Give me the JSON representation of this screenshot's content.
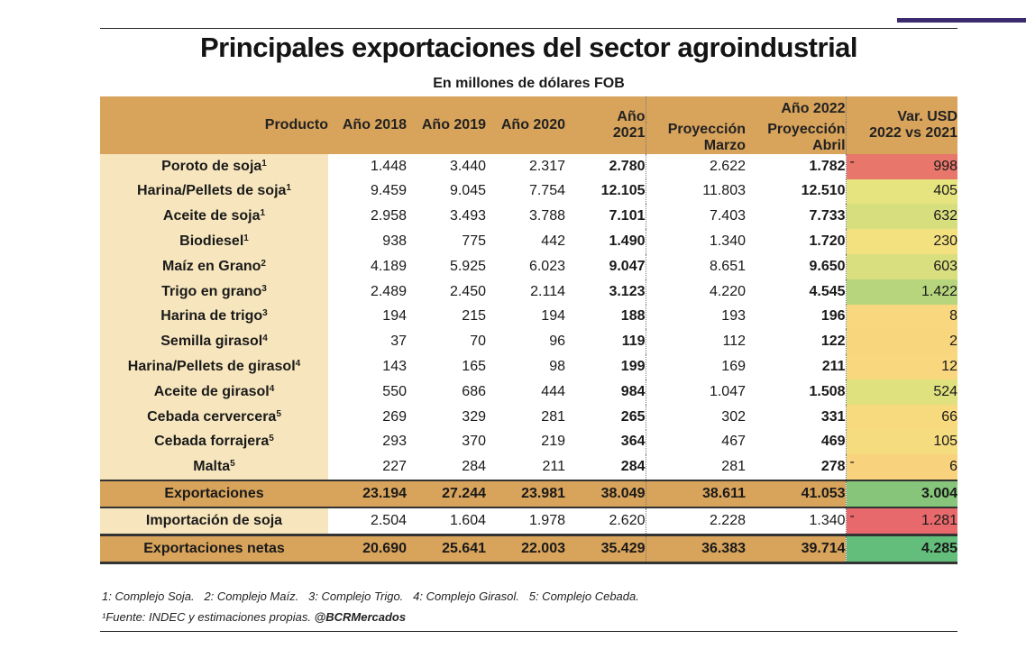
{
  "title": "Principales exportaciones del sector agroindustrial",
  "subtitle": "En millones de dólares FOB",
  "headers": {
    "producto": "Producto",
    "y2018": "Año 2018",
    "y2019": "Año 2019",
    "y2020": "Año 2020",
    "y2021a": "Año",
    "y2021b": "2021",
    "y2022": "Año 2022",
    "marzo_a": "Proyección",
    "marzo_b": "Marzo",
    "abril_a": "Proyección",
    "abril_b": "Abril",
    "var_a": "Var. USD",
    "var_b": "2022 vs 2021"
  },
  "rows": [
    {
      "name": "Poroto de soja",
      "note": "1",
      "y2018": "1.448",
      "y2019": "3.440",
      "y2020": "2.317",
      "y2021": "2.780",
      "marzo": "2.622",
      "abril": "1.782",
      "neg": "-",
      "var": "998",
      "color": "#e8766b"
    },
    {
      "name": "Harina/Pellets de soja",
      "note": "1",
      "y2018": "9.459",
      "y2019": "9.045",
      "y2020": "7.754",
      "y2021": "12.105",
      "marzo": "11.803",
      "abril": "12.510",
      "neg": "",
      "var": "405",
      "color": "#e6e47e"
    },
    {
      "name": "Aceite de soja",
      "note": "1",
      "y2018": "2.958",
      "y2019": "3.493",
      "y2020": "3.788",
      "y2021": "7.101",
      "marzo": "7.403",
      "abril": "7.733",
      "neg": "",
      "var": "632",
      "color": "#d7de7d"
    },
    {
      "name": "Biodiesel",
      "note": "1",
      "y2018": "938",
      "y2019": "775",
      "y2020": "442",
      "y2021": "1.490",
      "marzo": "1.340",
      "abril": "1.720",
      "neg": "",
      "var": "230",
      "color": "#f3e07f"
    },
    {
      "name": "Maíz en Grano",
      "note": "2",
      "y2018": "4.189",
      "y2019": "5.925",
      "y2020": "6.023",
      "y2021": "9.047",
      "marzo": "8.651",
      "abril": "9.650",
      "neg": "",
      "var": "603",
      "color": "#d9df7e"
    },
    {
      "name": "Trigo en grano",
      "note": "3",
      "y2018": "2.489",
      "y2019": "2.450",
      "y2020": "2.114",
      "y2021": "3.123",
      "marzo": "4.220",
      "abril": "4.545",
      "neg": "",
      "var": "1.422",
      "color": "#b7d57d"
    },
    {
      "name": "Harina de trigo",
      "note": "3",
      "y2018": "194",
      "y2019": "215",
      "y2020": "194",
      "y2021": "188",
      "marzo": "193",
      "abril": "196",
      "neg": "",
      "var": "8",
      "color": "#f8d77e"
    },
    {
      "name": "Semilla girasol",
      "note": "4",
      "y2018": "37",
      "y2019": "70",
      "y2020": "96",
      "y2021": "119",
      "marzo": "112",
      "abril": "122",
      "neg": "",
      "var": "2",
      "color": "#f8d67e"
    },
    {
      "name": "Harina/Pellets de girasol",
      "note": "4",
      "y2018": "143",
      "y2019": "165",
      "y2020": "98",
      "y2021": "199",
      "marzo": "169",
      "abril": "211",
      "neg": "",
      "var": "12",
      "color": "#f8d77e"
    },
    {
      "name": "Aceite de girasol",
      "note": "4",
      "y2018": "550",
      "y2019": "686",
      "y2020": "444",
      "y2021": "984",
      "marzo": "1.047",
      "abril": "1.508",
      "neg": "",
      "var": "524",
      "color": "#dfe07e"
    },
    {
      "name": "Cebada cervercera",
      "note": "5",
      "y2018": "269",
      "y2019": "329",
      "y2020": "281",
      "y2021": "265",
      "marzo": "302",
      "abril": "331",
      "neg": "",
      "var": "66",
      "color": "#f8da7e"
    },
    {
      "name": "Cebada forrajera",
      "note": "5",
      "y2018": "293",
      "y2019": "370",
      "y2020": "219",
      "y2021": "364",
      "marzo": "467",
      "abril": "469",
      "neg": "",
      "var": "105",
      "color": "#f5dc7f"
    },
    {
      "name": "Malta",
      "note": "5",
      "y2018": "227",
      "y2019": "284",
      "y2020": "211",
      "y2021": "284",
      "marzo": "281",
      "abril": "278",
      "neg": "-",
      "var": "6",
      "color": "#f8d27d"
    }
  ],
  "exportaciones": {
    "name": "Exportaciones",
    "y2018": "23.194",
    "y2019": "27.244",
    "y2020": "23.981",
    "y2021": "38.049",
    "marzo": "38.611",
    "abril": "41.053",
    "neg": "",
    "var": "3.004",
    "color": "#86c57a"
  },
  "importacion": {
    "name": "Importación de soja",
    "y2018": "2.504",
    "y2019": "1.604",
    "y2020": "1.978",
    "y2021": "2.620",
    "marzo": "2.228",
    "abril": "1.340",
    "neg": "-",
    "var": "1.281",
    "color": "#e8696b"
  },
  "netas": {
    "name": "Exportaciones netas",
    "y2018": "20.690",
    "y2019": "25.641",
    "y2020": "22.003",
    "y2021": "35.429",
    "marzo": "36.383",
    "abril": "39.714",
    "neg": "",
    "var": "4.285",
    "color": "#63be7b"
  },
  "notes": "1: Complejo Soja.   2: Complejo Maíz.   3: Complejo Trigo.   4: Complejo Girasol.   5: Complejo Cebada.",
  "source_prefix": "¹Fuente: INDEC y estimaciones propias.",
  "source_handle": "@BCRMercados"
}
